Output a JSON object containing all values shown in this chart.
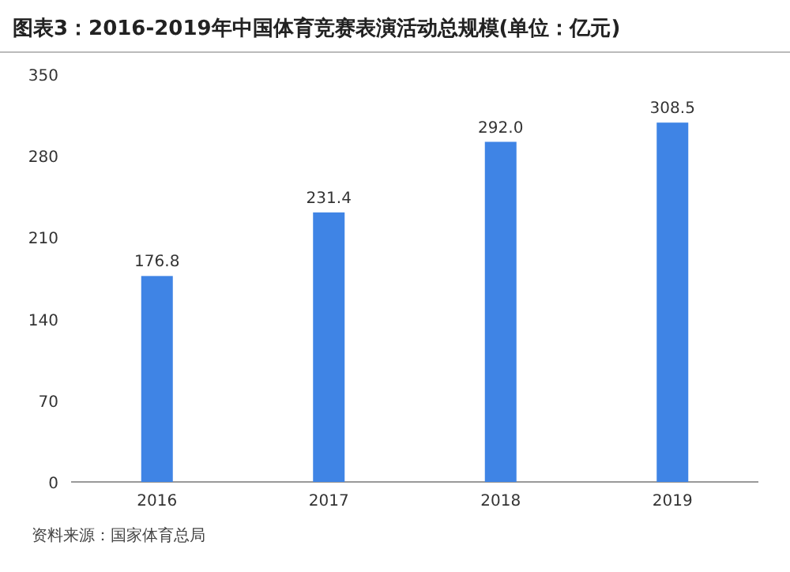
{
  "chart_data": {
    "type": "bar",
    "title": "图表3：2016-2019年中国体育竞赛表演活动总规模(单位：亿元)",
    "categories": [
      "2016",
      "2017",
      "2018",
      "2019"
    ],
    "values": [
      176.8,
      231.4,
      292.0,
      308.5
    ],
    "value_labels": [
      "176.8",
      "231.4",
      "292.0",
      "308.5"
    ],
    "color": "#3f84e5",
    "ylim": [
      0,
      350
    ],
    "yticks": [
      0,
      70,
      140,
      210,
      280,
      350
    ],
    "grid": false,
    "annotations": [
      "资料来源：国家体育总局"
    ]
  }
}
